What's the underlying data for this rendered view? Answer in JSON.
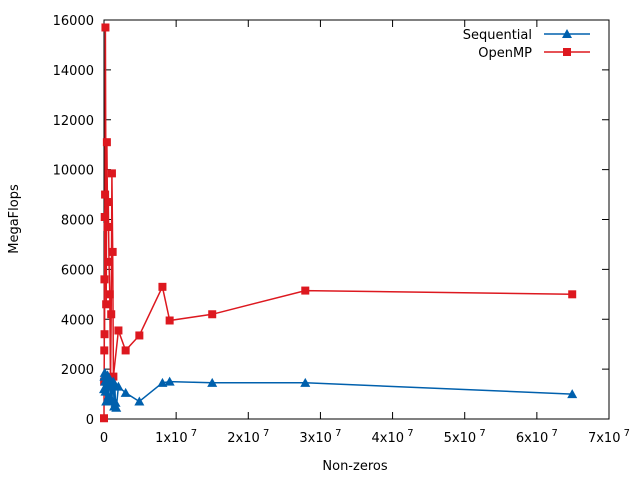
{
  "chart_data": {
    "type": "line",
    "xlabel": "Non-zeros",
    "ylabel": "MegaFlops",
    "xlim": [
      0,
      70000000
    ],
    "ylim": [
      0,
      16000
    ],
    "x_ticks": [
      0,
      10000000,
      20000000,
      30000000,
      40000000,
      50000000,
      60000000,
      70000000
    ],
    "x_tick_labels": [
      {
        "base": "0",
        "exp": ""
      },
      {
        "base": "1x10",
        "exp": "7"
      },
      {
        "base": "2x10",
        "exp": "7"
      },
      {
        "base": "3x10",
        "exp": "7"
      },
      {
        "base": "4x10",
        "exp": "7"
      },
      {
        "base": "5x10",
        "exp": "7"
      },
      {
        "base": "6x10",
        "exp": "7"
      },
      {
        "base": "7x10",
        "exp": "7"
      }
    ],
    "y_ticks": [
      0,
      2000,
      4000,
      6000,
      8000,
      10000,
      12000,
      14000,
      16000
    ],
    "y_tick_labels": [
      "0",
      "2000",
      "4000",
      "6000",
      "8000",
      "10000",
      "12000",
      "14000",
      "16000"
    ],
    "grid": false,
    "legend_position": "top-right",
    "series": [
      {
        "name": "Sequential",
        "color": "#0060ad",
        "marker": "triangle",
        "points": [
          [
            0,
            1200
          ],
          [
            50000,
            1700
          ],
          [
            100000,
            1850
          ],
          [
            150000,
            1500
          ],
          [
            200000,
            1100
          ],
          [
            300000,
            700
          ],
          [
            400000,
            1500
          ],
          [
            500000,
            1750
          ],
          [
            600000,
            900
          ],
          [
            700000,
            1650
          ],
          [
            800000,
            1550
          ],
          [
            900000,
            700
          ],
          [
            1000000,
            1500
          ],
          [
            1100000,
            750
          ],
          [
            1200000,
            1400
          ],
          [
            1300000,
            1500
          ],
          [
            1400000,
            500
          ],
          [
            1500000,
            1350
          ],
          [
            1600000,
            650
          ],
          [
            1700000,
            450
          ],
          [
            2000000,
            1300
          ],
          [
            3000000,
            1050
          ],
          [
            4900000,
            700
          ],
          [
            8100000,
            1450
          ],
          [
            9100000,
            1500
          ],
          [
            15000000,
            1450
          ],
          [
            27900000,
            1450
          ],
          [
            64900000,
            1000
          ]
        ]
      },
      {
        "name": "OpenMP",
        "color": "#dd181f",
        "marker": "square",
        "points": [
          [
            0,
            30
          ],
          [
            20000,
            1500
          ],
          [
            40000,
            2750
          ],
          [
            60000,
            5600
          ],
          [
            80000,
            3400
          ],
          [
            100000,
            8100
          ],
          [
            150000,
            9000
          ],
          [
            200000,
            15700
          ],
          [
            300000,
            4600
          ],
          [
            400000,
            11100
          ],
          [
            500000,
            7700
          ],
          [
            600000,
            8700
          ],
          [
            700000,
            6300
          ],
          [
            800000,
            5000
          ],
          [
            900000,
            1300
          ],
          [
            1000000,
            4200
          ],
          [
            1100000,
            9850
          ],
          [
            1200000,
            6700
          ],
          [
            1300000,
            1700
          ],
          [
            2000000,
            3550
          ],
          [
            3000000,
            2750
          ],
          [
            4900000,
            3350
          ],
          [
            8100000,
            5300
          ],
          [
            9100000,
            3950
          ],
          [
            15000000,
            4200
          ],
          [
            27900000,
            5150
          ],
          [
            64900000,
            5000
          ]
        ]
      }
    ]
  }
}
